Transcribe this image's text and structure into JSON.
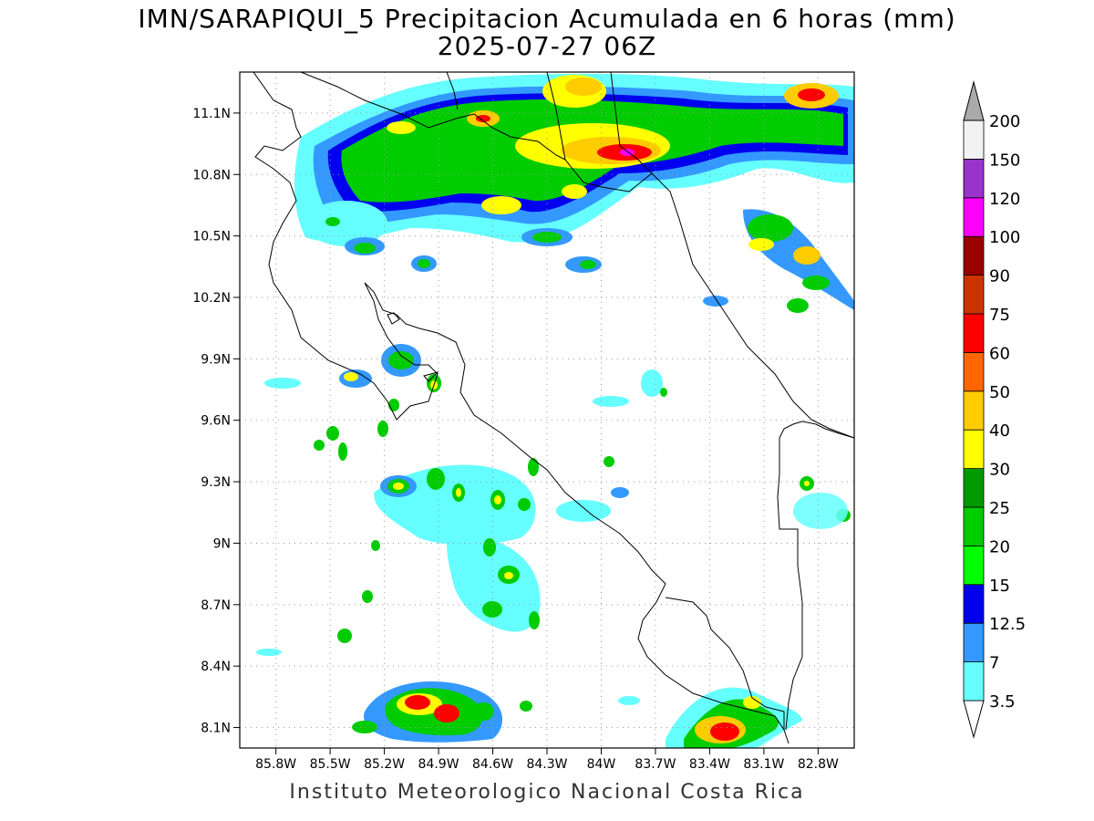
{
  "title": {
    "line1": "IMN/SARAPIQUI_5 Precipitacion Acumulada en 6 horas (mm)",
    "line2": "2025-07-27 06Z"
  },
  "footer": "Instituto Meteorologico Nacional Costa Rica",
  "map": {
    "lon_range": [
      -86.0,
      -82.6
    ],
    "lat_range": [
      8.0,
      11.3
    ],
    "x_ticks": [
      {
        "value": -85.8,
        "label": "85.8W"
      },
      {
        "value": -85.5,
        "label": "85.5W"
      },
      {
        "value": -85.2,
        "label": "85.2W"
      },
      {
        "value": -84.9,
        "label": "84.9W"
      },
      {
        "value": -84.6,
        "label": "84.6W"
      },
      {
        "value": -84.3,
        "label": "84.3W"
      },
      {
        "value": -84.0,
        "label": "84W"
      },
      {
        "value": -83.7,
        "label": "83.7W"
      },
      {
        "value": -83.4,
        "label": "83.4W"
      },
      {
        "value": -83.1,
        "label": "83.1W"
      },
      {
        "value": -82.8,
        "label": "82.8W"
      }
    ],
    "y_ticks": [
      {
        "value": 8.1,
        "label": "8.1N"
      },
      {
        "value": 8.4,
        "label": "8.4N"
      },
      {
        "value": 8.7,
        "label": "8.7N"
      },
      {
        "value": 9.0,
        "label": "9N"
      },
      {
        "value": 9.3,
        "label": "9.3N"
      },
      {
        "value": 9.6,
        "label": "9.6N"
      },
      {
        "value": 9.9,
        "label": "9.9N"
      },
      {
        "value": 10.2,
        "label": "10.2N"
      },
      {
        "value": 10.5,
        "label": "10.5N"
      },
      {
        "value": 10.8,
        "label": "10.8N"
      },
      {
        "value": 11.1,
        "label": "11.1N"
      }
    ],
    "grid": true
  },
  "colorbar": {
    "levels": [
      {
        "label": "3.5",
        "color": "#66ffff"
      },
      {
        "label": "7",
        "color": "#3399ff"
      },
      {
        "label": "12.5",
        "color": "#0000ee"
      },
      {
        "label": "15",
        "color": "#00ff00"
      },
      {
        "label": "20",
        "color": "#00cc00"
      },
      {
        "label": "25",
        "color": "#009900"
      },
      {
        "label": "30",
        "color": "#ffff00"
      },
      {
        "label": "40",
        "color": "#ffcc00"
      },
      {
        "label": "50",
        "color": "#ff6600"
      },
      {
        "label": "60",
        "color": "#ff0000"
      },
      {
        "label": "75",
        "color": "#cc3300"
      },
      {
        "label": "90",
        "color": "#990000"
      },
      {
        "label": "100",
        "color": "#ff00ff"
      },
      {
        "label": "120",
        "color": "#9933cc"
      },
      {
        "label": "150",
        "color": "#f2f2f2"
      },
      {
        "label": "200",
        "color": "#aaaaaa"
      }
    ]
  }
}
